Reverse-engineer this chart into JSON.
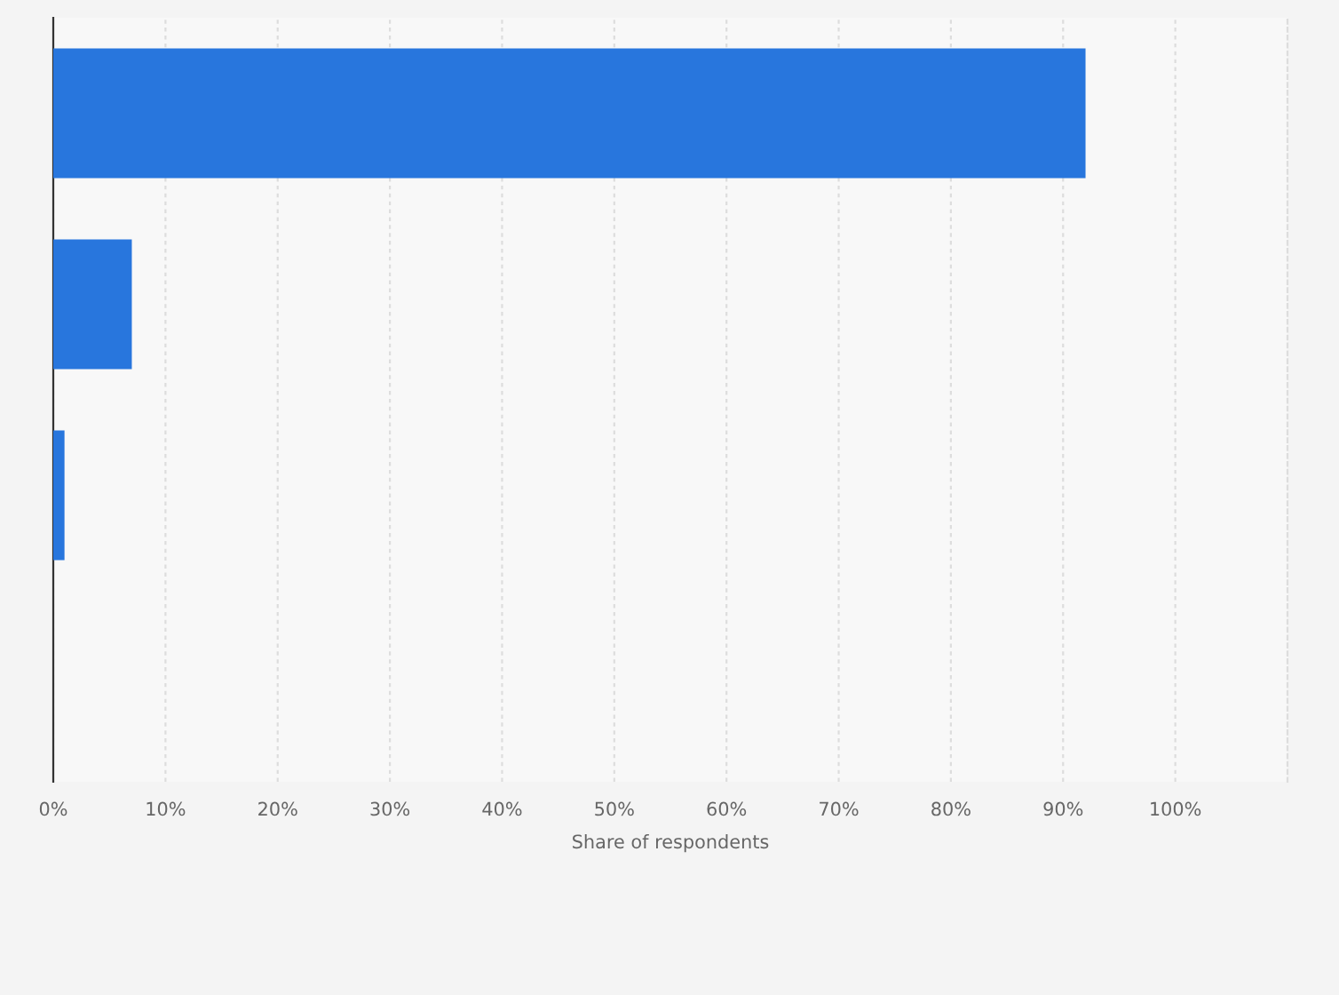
{
  "chart_data": {
    "type": "bar",
    "orientation": "horizontal",
    "categories": [
      null,
      null,
      null,
      null
    ],
    "values": [
      92,
      7,
      1,
      0
    ],
    "color": "#2876dd",
    "xlabel": "Share of respondents",
    "xlim": [
      0,
      110
    ],
    "xticks": [
      {
        "value": 0,
        "label": "0%"
      },
      {
        "value": 10,
        "label": "10%"
      },
      {
        "value": 20,
        "label": "20%"
      },
      {
        "value": 30,
        "label": "30%"
      },
      {
        "value": 40,
        "label": "40%"
      },
      {
        "value": 50,
        "label": "50%"
      },
      {
        "value": 60,
        "label": "60%"
      },
      {
        "value": 70,
        "label": "70%"
      },
      {
        "value": 80,
        "label": "80%"
      },
      {
        "value": 90,
        "label": "90%"
      },
      {
        "value": 100,
        "label": "100%"
      }
    ],
    "grid": "x"
  }
}
